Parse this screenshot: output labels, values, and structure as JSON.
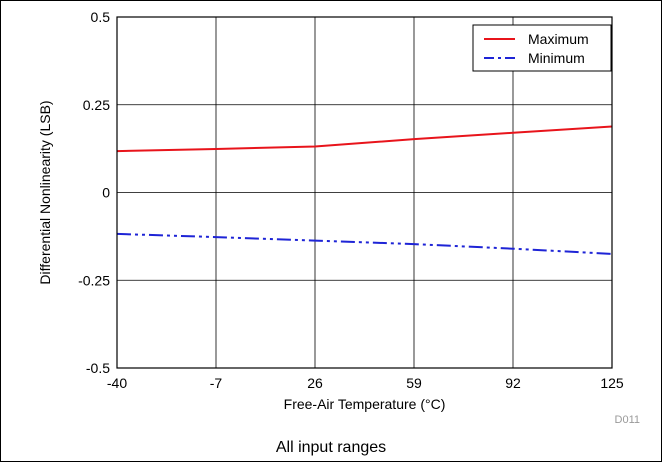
{
  "chart_data": {
    "type": "line",
    "title": "",
    "xlabel": "Free-Air Temperature (°C)",
    "ylabel": "Differential Nonlinearity (LSB)",
    "x": [
      -40,
      -7,
      26,
      59,
      92,
      125
    ],
    "x_ticks": [
      "-40",
      "-7",
      "26",
      "59",
      "92",
      "125"
    ],
    "y_ticks": [
      "0.5",
      "0.25",
      "0",
      "-0.25",
      "-0.5"
    ],
    "xlim": [
      -40,
      125
    ],
    "ylim": [
      -0.5,
      0.5
    ],
    "grid": true,
    "legend_position": "top-right",
    "series": [
      {
        "name": "Maximum",
        "color": "#e8141b",
        "style": "solid",
        "values": [
          0.118,
          0.124,
          0.131,
          0.152,
          0.17,
          0.188
        ]
      },
      {
        "name": "Minimum",
        "color": "#1e24d6",
        "style": "dash-dot-dot",
        "values": [
          -0.118,
          -0.127,
          -0.137,
          -0.147,
          -0.16,
          -0.175
        ]
      }
    ],
    "annotations": {
      "code": "D011",
      "caption": "All input ranges"
    }
  }
}
